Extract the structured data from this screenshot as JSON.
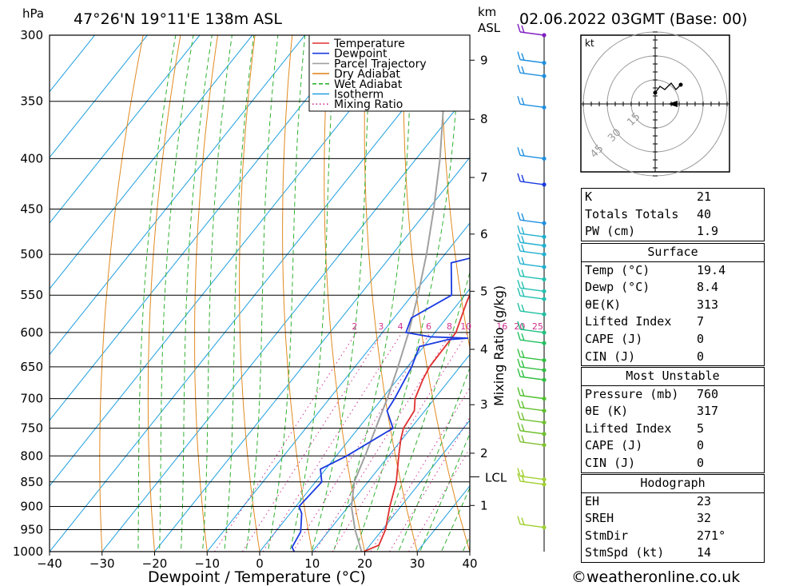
{
  "header": {
    "location": "47°26'N 19°11'E 138m ASL",
    "datetime": "02.06.2022 03GMT (Base: 00)",
    "hpa_unit": "hPa",
    "km_unit": "km",
    "asl_unit": "ASL"
  },
  "chart_data": {
    "type": "line",
    "xlabel": "Dewpoint / Temperature (°C)",
    "mixing_axis_label": "Mixing Ratio (g/kg)",
    "x_ticks": [
      "−40",
      "−30",
      "−20",
      "−10",
      "0",
      "10",
      "20",
      "30",
      "40"
    ],
    "x_tick_values": [
      -40,
      -30,
      -20,
      -10,
      0,
      10,
      20,
      30,
      40
    ],
    "xlim": [
      -40,
      40
    ],
    "pressure_ticks": [
      300,
      350,
      400,
      450,
      500,
      550,
      600,
      650,
      700,
      750,
      800,
      850,
      900,
      950,
      1000
    ],
    "ylim_hpa": [
      300,
      1000
    ],
    "height_ticks": [
      {
        "label": "9",
        "p": 318
      },
      {
        "label": "8",
        "p": 365
      },
      {
        "label": "7",
        "p": 418
      },
      {
        "label": "6",
        "p": 477
      },
      {
        "label": "5",
        "p": 545
      },
      {
        "label": "4",
        "p": 624
      },
      {
        "label": "3",
        "p": 710
      },
      {
        "label": "2",
        "p": 795
      },
      {
        "label": "1",
        "p": 898
      }
    ],
    "lcl": {
      "label": "LCL",
      "p": 840
    },
    "mixing_ratio_labels": [
      {
        "label": "2",
        "value": 2
      },
      {
        "label": "3",
        "value": 3
      },
      {
        "label": "4",
        "value": 4
      },
      {
        "label": "6",
        "value": 6
      },
      {
        "label": "8",
        "value": 8
      },
      {
        "label": "10",
        "value": 10
      },
      {
        "label": "16",
        "value": 16
      },
      {
        "label": "20",
        "value": 20
      },
      {
        "label": "25",
        "value": 25
      }
    ],
    "legend": {
      "placement": "top-right",
      "entries": [
        {
          "name": "Temperature",
          "color": "#e03030",
          "style": "solid"
        },
        {
          "name": "Dewpoint",
          "color": "#1a3ae0",
          "style": "solid"
        },
        {
          "name": "Parcel Trajectory",
          "color": "#a0a0a0",
          "style": "solid"
        },
        {
          "name": "Dry Adiabat",
          "color": "#e08a20",
          "style": "solid"
        },
        {
          "name": "Wet Adiabat",
          "color": "#30b030",
          "style": "dashed"
        },
        {
          "name": "Isotherm",
          "color": "#20a0e0",
          "style": "solid"
        },
        {
          "name": "Mixing Ratio",
          "color": "#d03090",
          "style": "dotted"
        }
      ]
    },
    "series": [
      {
        "name": "Temperature",
        "color": "#e03030",
        "points": [
          [
            1000,
            19.8
          ],
          [
            985,
            21.7
          ],
          [
            950,
            20.6
          ],
          [
            900,
            17.9
          ],
          [
            850,
            15.4
          ],
          [
            800,
            11.9
          ],
          [
            770,
            9.8
          ],
          [
            750,
            8.6
          ],
          [
            720,
            8.0
          ],
          [
            700,
            6.3
          ],
          [
            670,
            4.9
          ],
          [
            650,
            4.2
          ],
          [
            600,
            4.0
          ],
          [
            560,
            1.5
          ],
          [
            525,
            -0.5
          ],
          [
            500,
            -2.0
          ],
          [
            470,
            -3.8
          ],
          [
            430,
            -6.8
          ],
          [
            400,
            -9.8
          ],
          [
            370,
            -14.0
          ],
          [
            340,
            -19.5
          ],
          [
            320,
            -22.8
          ],
          [
            300,
            -26.0
          ]
        ]
      },
      {
        "name": "Dewpoint",
        "color": "#1a3ae0",
        "points": [
          [
            1000,
            6.6
          ],
          [
            990,
            5.5
          ],
          [
            955,
            4.8
          ],
          [
            915,
            2.2
          ],
          [
            900,
            0.6
          ],
          [
            850,
            1.2
          ],
          [
            825,
            -1.0
          ],
          [
            800,
            2.0
          ],
          [
            750,
            6.6
          ],
          [
            720,
            2.8
          ],
          [
            700,
            2.4
          ],
          [
            650,
            0.8
          ],
          [
            620,
            -0.8
          ],
          [
            610,
            3.6
          ],
          [
            608,
            7.2
          ],
          [
            606,
            -0.2
          ],
          [
            600,
            -5.5
          ],
          [
            580,
            -6.7
          ],
          [
            550,
            -2.5
          ],
          [
            510,
            -7.5
          ],
          [
            500,
            -2.2
          ],
          [
            480,
            -5.5
          ],
          [
            420,
            -15.0
          ],
          [
            400,
            -15.0
          ],
          [
            385,
            -17.0
          ],
          [
            360,
            -13.2
          ],
          [
            330,
            -16.6
          ],
          [
            325,
            -18.7
          ],
          [
            300,
            -17.4
          ]
        ]
      },
      {
        "name": "Parcel Trajectory",
        "color": "#a0a0a0",
        "points": [
          [
            1000,
            19.4
          ],
          [
            950,
            14.8
          ],
          [
            900,
            10.6
          ],
          [
            850,
            7.4
          ],
          [
            800,
            5.5
          ],
          [
            750,
            3.3
          ],
          [
            700,
            1.0
          ],
          [
            650,
            -1.8
          ],
          [
            600,
            -5.0
          ],
          [
            550,
            -8.9
          ],
          [
            500,
            -13.5
          ],
          [
            450,
            -19.0
          ],
          [
            400,
            -25.5
          ],
          [
            350,
            -33.5
          ],
          [
            300,
            -43.0
          ]
        ]
      }
    ],
    "wind_profile": [
      {
        "p": 300,
        "color": "#8020c0"
      },
      {
        "p": 320,
        "color": "#2090e0"
      },
      {
        "p": 330,
        "color": "#2090e0"
      },
      {
        "p": 355,
        "color": "#2090e0"
      },
      {
        "p": 400,
        "color": "#2090e0"
      },
      {
        "p": 425,
        "color": "#1a3ae0"
      },
      {
        "p": 465,
        "color": "#2090e0"
      },
      {
        "p": 480,
        "color": "#20b0d0"
      },
      {
        "p": 490,
        "color": "#20b0d0"
      },
      {
        "p": 500,
        "color": "#20b0d0"
      },
      {
        "p": 515,
        "color": "#20b0d0"
      },
      {
        "p": 530,
        "color": "#20c0b0"
      },
      {
        "p": 545,
        "color": "#20c0b0"
      },
      {
        "p": 555,
        "color": "#20c0b0"
      },
      {
        "p": 575,
        "color": "#20c0a0"
      },
      {
        "p": 600,
        "color": "#20c080"
      },
      {
        "p": 615,
        "color": "#20c060"
      },
      {
        "p": 640,
        "color": "#30c040"
      },
      {
        "p": 655,
        "color": "#30c040"
      },
      {
        "p": 670,
        "color": "#30c040"
      },
      {
        "p": 700,
        "color": "#50c030"
      },
      {
        "p": 720,
        "color": "#60c030"
      },
      {
        "p": 740,
        "color": "#70c030"
      },
      {
        "p": 760,
        "color": "#70c030"
      },
      {
        "p": 780,
        "color": "#80c030"
      },
      {
        "p": 845,
        "color": "#a0d030"
      },
      {
        "p": 855,
        "color": "#a0d030"
      },
      {
        "p": 945,
        "color": "#a0d030"
      }
    ]
  },
  "hodograph": {
    "unit": "kt",
    "ring_labels": [
      "15",
      "30",
      "45"
    ]
  },
  "stats": {
    "indices": [
      {
        "label": "K",
        "value": "21"
      },
      {
        "label": "Totals Totals",
        "value": "40"
      },
      {
        "label": "PW (cm)",
        "value": "1.9"
      }
    ],
    "surface_title": "Surface",
    "surface": [
      {
        "label": "Temp (°C)",
        "value": "19.4"
      },
      {
        "label": "Dewp (°C)",
        "value": "8.4"
      },
      {
        "label": "θE(K)",
        "value": "313"
      },
      {
        "label": "Lifted Index",
        "value": "7"
      },
      {
        "label": "CAPE (J)",
        "value": "0"
      },
      {
        "label": "CIN (J)",
        "value": "0"
      }
    ],
    "mu_title": "Most Unstable",
    "most_unstable": [
      {
        "label": "Pressure (mb)",
        "value": "760"
      },
      {
        "label": "θE (K)",
        "value": "317"
      },
      {
        "label": "Lifted Index",
        "value": "5"
      },
      {
        "label": "CAPE (J)",
        "value": "0"
      },
      {
        "label": "CIN (J)",
        "value": "0"
      }
    ],
    "hodo_title": "Hodograph",
    "hodo": [
      {
        "label": "EH",
        "value": "23"
      },
      {
        "label": "SREH",
        "value": "32"
      },
      {
        "label": "StmDir",
        "value": "271°"
      },
      {
        "label": "StmSpd (kt)",
        "value": "14"
      }
    ]
  },
  "footer": "©weatheronline.co.uk"
}
